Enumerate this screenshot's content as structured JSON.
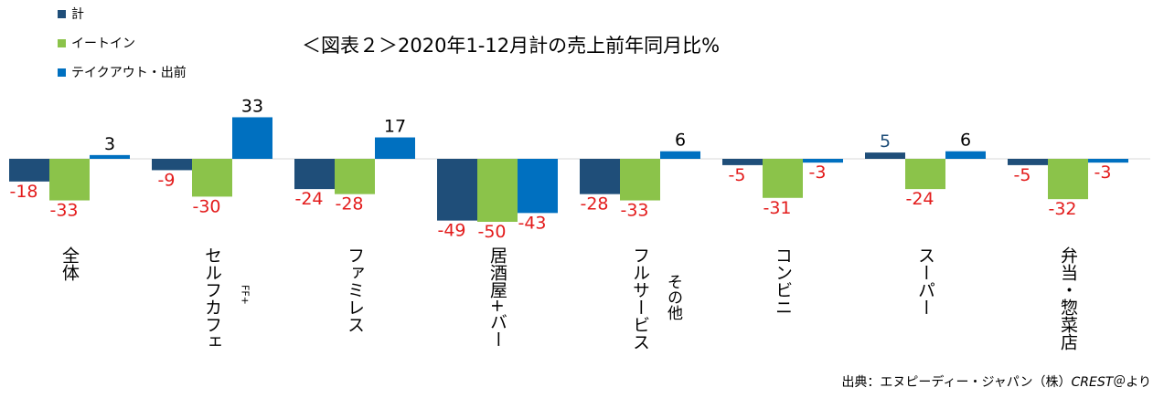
{
  "chart_data": {
    "type": "bar",
    "title": "＜図表２＞2020年1-12月計の売上前年同月比%",
    "categories": [
      {
        "label": "全体",
        "sublabel": ""
      },
      {
        "label": "セルフカフェ",
        "sublabel": "FF+"
      },
      {
        "label": "ファミレス",
        "sublabel": ""
      },
      {
        "label": "居酒屋+バー",
        "sublabel": ""
      },
      {
        "label": "フルサービス",
        "sublabel": "その他"
      },
      {
        "label": "コンビニ",
        "sublabel": ""
      },
      {
        "label": "スーパー",
        "sublabel": ""
      },
      {
        "label": "弁当・惣菜店",
        "sublabel": ""
      }
    ],
    "series": [
      {
        "name": "計",
        "color": "#1f4e79",
        "values": [
          -18,
          -9,
          -24,
          -49,
          -28,
          -5,
          5,
          -5
        ]
      },
      {
        "name": "イートイン",
        "color": "#8bc34a",
        "values": [
          -33,
          -30,
          -28,
          -50,
          -33,
          -31,
          -24,
          -32
        ]
      },
      {
        "name": "テイクアウト・出前",
        "color": "#0070c0",
        "values": [
          3,
          33,
          17,
          -43,
          6,
          -3,
          6,
          -3
        ]
      }
    ],
    "positive_label_colors": [
      "#1f4e79",
      "#000000",
      "#000000"
    ],
    "negative_label_color": "#e31c1c",
    "legend_position": "top-left",
    "grid": false
  },
  "source": {
    "text": "出典：エヌピーディー・ジャパン（株）",
    "brand": "CREST",
    "suffix": "＠より"
  }
}
